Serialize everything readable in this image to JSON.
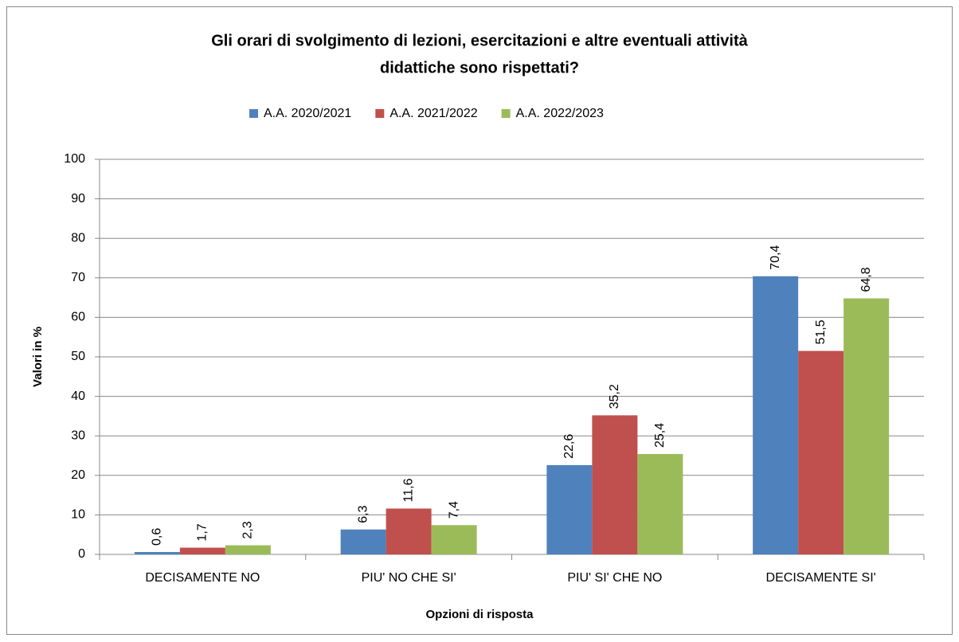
{
  "chart_data": {
    "type": "bar",
    "title": [
      "Gli orari di svolgimento di lezioni, esercitazioni e altre eventuali attività",
      "didattiche sono rispettati?"
    ],
    "x_label": "Opzioni di risposta",
    "y_label": "Valori in %",
    "categories": [
      "DECISAMENTE NO",
      "PIU' NO CHE SI'",
      "PIU' SI' CHE NO",
      "DECISAMENTE SI'"
    ],
    "series": [
      {
        "name": "A.A. 2020/2021",
        "color": "#4f81bd",
        "values": [
          0.6,
          6.3,
          22.6,
          70.4
        ],
        "value_labels": [
          "0,6",
          "6,3",
          "22,6",
          "70,4"
        ]
      },
      {
        "name": "A.A. 2021/2022",
        "color": "#c0504d",
        "values": [
          1.7,
          11.6,
          35.2,
          51.5
        ],
        "value_labels": [
          "1,7",
          "11,6",
          "35,2",
          "51,5"
        ]
      },
      {
        "name": "A.A. 2022/2023",
        "color": "#9bbb59",
        "values": [
          2.3,
          7.4,
          25.4,
          64.8
        ],
        "value_labels": [
          "2,3",
          "7,4",
          "25,4",
          "64,8"
        ]
      }
    ],
    "ylim": [
      0,
      100
    ],
    "yticks": [
      0,
      10,
      20,
      30,
      40,
      50,
      60,
      70,
      80,
      90,
      100
    ],
    "grid": true,
    "legend": "top"
  }
}
